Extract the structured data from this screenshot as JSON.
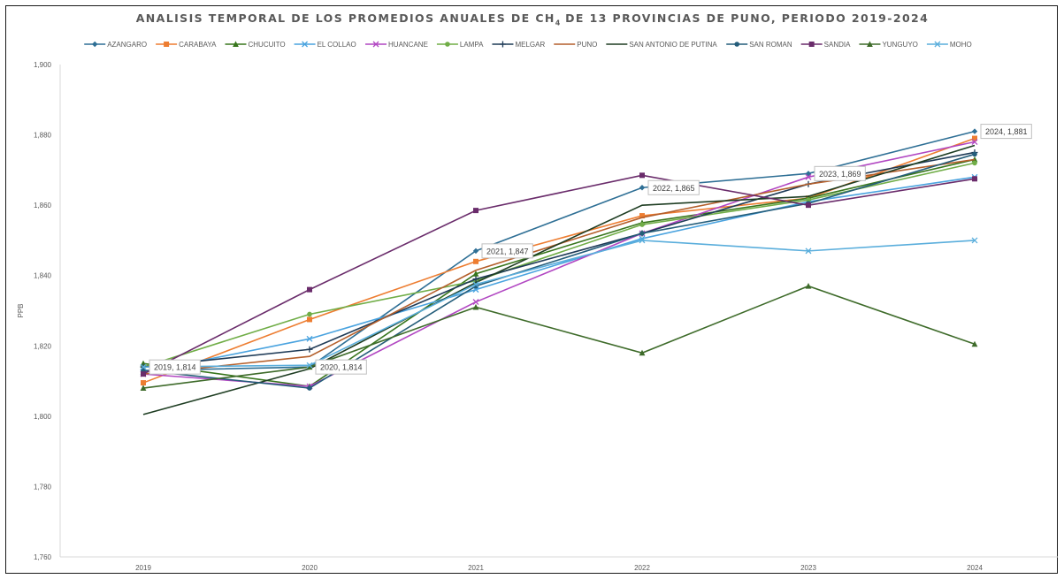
{
  "chart_data": {
    "type": "line",
    "title_main": "ANALISIS TEMPORAL DE LOS PROMEDIOS ANUALES DE CH",
    "title_sub": "4",
    "title_tail": " DE 13 PROVINCIAS DE PUNO, PERIODO 2019-2024",
    "ylabel": "PPB",
    "xlabel": "",
    "categories": [
      "2019",
      "2020",
      "2021",
      "2022",
      "2023",
      "2024"
    ],
    "ylim": [
      1760,
      1900
    ],
    "yticks": [
      "1,760",
      "1,780",
      "1,800",
      "1,820",
      "1,840",
      "1,860",
      "1,880",
      "1,900"
    ],
    "grid": false,
    "legend_position": "top",
    "series": [
      {
        "name": "AZANGARO",
        "color": "#2e6f95",
        "marker": "diamond",
        "values": [
          1813,
          1814,
          1847,
          1865,
          1869,
          1881
        ]
      },
      {
        "name": "CARABAYA",
        "color": "#ed7d31",
        "marker": "square",
        "values": [
          1809.5,
          1827.5,
          1844,
          1857,
          1862,
          1879
        ]
      },
      {
        "name": "CHUCUITO",
        "color": "#38761d",
        "marker": "triangle",
        "values": [
          1815,
          1808.5,
          1840.5,
          1855,
          1862,
          1873
        ]
      },
      {
        "name": "EL COLLAO",
        "color": "#4aa3df",
        "marker": "x",
        "values": [
          1812.5,
          1822,
          1836,
          1850.5,
          1861,
          1868
        ]
      },
      {
        "name": "HUANCANE",
        "color": "#b146c2",
        "marker": "x",
        "values": [
          1812,
          1808.5,
          1832.5,
          1852,
          1868,
          1878
        ]
      },
      {
        "name": "LAMPA",
        "color": "#70ad47",
        "marker": "circle",
        "values": [
          1814,
          1829,
          1838.5,
          1854.5,
          1861.5,
          1872
        ]
      },
      {
        "name": "MELGAR",
        "color": "#1f3b57",
        "marker": "plus",
        "values": [
          1814,
          1819,
          1839,
          1852,
          1866,
          1875
        ]
      },
      {
        "name": "PUNO",
        "color": "#b45f2b",
        "marker": "none",
        "values": [
          1812,
          1817,
          1841.5,
          1856.5,
          1866,
          1873
        ]
      },
      {
        "name": "SAN ANTONIO DE PUTINA",
        "color": "#1e3d22",
        "marker": "none",
        "values": [
          1800.5,
          1813.5,
          1838,
          1860,
          1862.5,
          1877
        ]
      },
      {
        "name": "SAN ROMAN",
        "color": "#245d7a",
        "marker": "circle",
        "values": [
          1813,
          1808,
          1837,
          1852,
          1860.5,
          1874.5
        ]
      },
      {
        "name": "SANDIA",
        "color": "#6a2c6b",
        "marker": "square",
        "values": [
          1812,
          1836,
          1858.5,
          1868.5,
          1860,
          1867.5
        ]
      },
      {
        "name": "YUNGUYO",
        "color": "#3e6b2a",
        "marker": "triangle",
        "values": [
          1808,
          1814,
          1831,
          1818,
          1837,
          1820.5
        ]
      },
      {
        "name": "MOHO",
        "color": "#5aaedc",
        "marker": "x",
        "values": [
          1814,
          1814.5,
          1837.5,
          1850,
          1847,
          1850
        ]
      }
    ],
    "annotations": [
      {
        "label": "2019, 1,814",
        "category": "2019",
        "value": 1814
      },
      {
        "label": "2020, 1,814",
        "category": "2020",
        "value": 1814
      },
      {
        "label": "2021, 1,847",
        "category": "2021",
        "value": 1847
      },
      {
        "label": "2022, 1,865",
        "category": "2022",
        "value": 1865
      },
      {
        "label": "2023, 1,869",
        "category": "2023",
        "value": 1869
      },
      {
        "label": "2024, 1,881",
        "category": "2024",
        "value": 1881
      }
    ]
  }
}
